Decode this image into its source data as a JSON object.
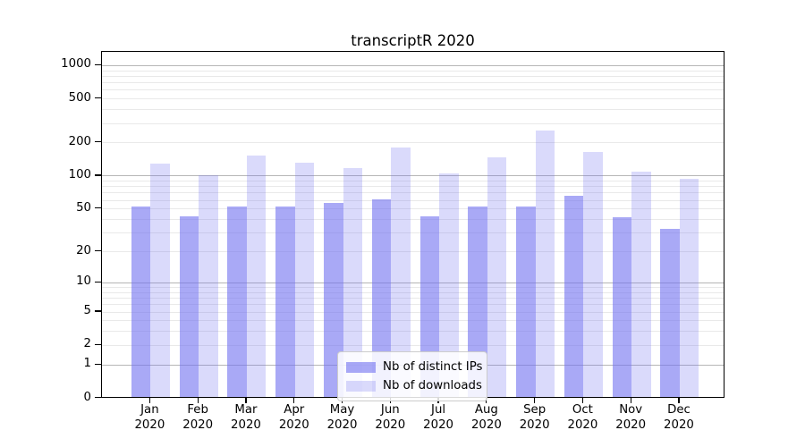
{
  "title": "transcriptR 2020",
  "legend": {
    "items": [
      {
        "label": "Nb of distinct IPs",
        "color": "rgba(112,112,240,0.6)"
      },
      {
        "label": "Nb of downloads",
        "color": "rgba(112,112,240,0.26)"
      }
    ]
  },
  "axes": {
    "y_ticks": [
      0,
      1,
      2,
      5,
      10,
      20,
      50,
      100,
      200,
      500,
      1000
    ],
    "x_month_labels": [
      "Jan",
      "Feb",
      "Mar",
      "Apr",
      "May",
      "Jun",
      "Jul",
      "Aug",
      "Sep",
      "Oct",
      "Nov",
      "Dec"
    ],
    "x_year_label": "2020"
  },
  "colors": {
    "bar_base": "#7070f0",
    "series_dark": "rgba(112,112,240,0.6)",
    "series_light": "rgba(112,112,240,0.26)",
    "grid_major": "#b6b6b6",
    "grid_minor": "#e9e9e9",
    "axis": "#000000"
  },
  "chart_data": {
    "type": "bar",
    "title": "transcriptR 2020",
    "categories": [
      "Jan 2020",
      "Feb 2020",
      "Mar 2020",
      "Apr 2020",
      "May 2020",
      "Jun 2020",
      "Jul 2020",
      "Aug 2020",
      "Sep 2020",
      "Oct 2020",
      "Nov 2020",
      "Dec 2020"
    ],
    "series": [
      {
        "name": "Nb of distinct IPs",
        "color": "rgba(112,112,240,0.6)",
        "values": [
          53,
          43,
          53,
          53,
          57,
          61,
          43,
          53,
          53,
          66,
          42,
          33
        ]
      },
      {
        "name": "Nb of downloads",
        "color": "rgba(112,112,240,0.26)",
        "values": [
          130,
          102,
          154,
          132,
          118,
          182,
          105,
          148,
          259,
          166,
          110,
          94
        ]
      }
    ],
    "yscale": "log10(value+1)",
    "yticks": [
      0,
      1,
      2,
      5,
      10,
      20,
      50,
      100,
      200,
      500,
      1000
    ],
    "ylim": [
      0,
      1330
    ],
    "grid": true,
    "grid_major_values": [
      1,
      10,
      100,
      1000
    ],
    "grid_minor_values": [
      2,
      3,
      4,
      5,
      6,
      7,
      8,
      9,
      20,
      30,
      40,
      50,
      60,
      70,
      80,
      90,
      200,
      300,
      400,
      500,
      600,
      700,
      800,
      900
    ],
    "legend_position": "lower center",
    "xlabel": "",
    "ylabel": ""
  }
}
